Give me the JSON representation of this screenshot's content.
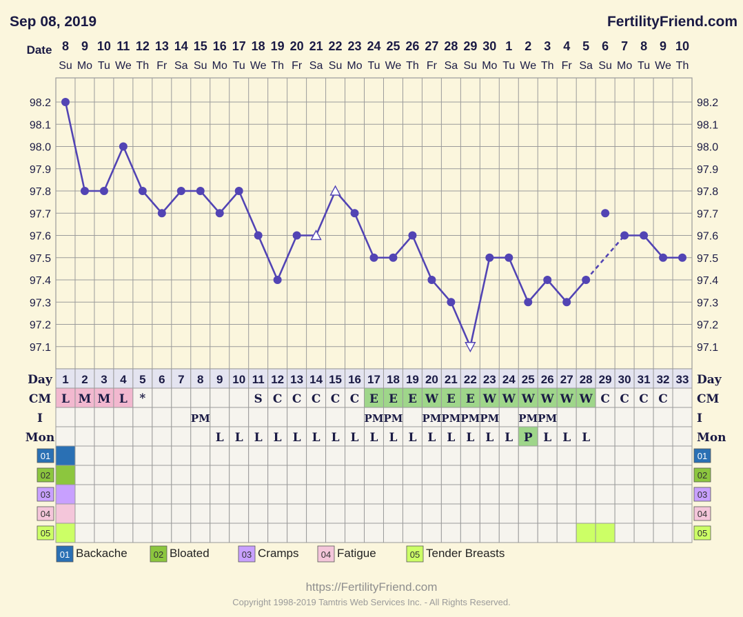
{
  "header": {
    "date": "Sep 08, 2019",
    "site": "FertilityFriend.com"
  },
  "row_labels": {
    "date": "Date",
    "day": "Day",
    "cm": "CM",
    "intercourse": "I",
    "mon": "Mon"
  },
  "footer": {
    "url": "https://FertilityFriend.com",
    "copyright": "Copyright 1998-2019 Tamtris Web Services Inc. - All Rights Reserved."
  },
  "colors": {
    "background": "#fbf6dd",
    "grid": "#9a9a9a",
    "line": "#5244b4",
    "cm_fertile": "#9fd68a",
    "cm_period": "#f2b8cf",
    "mon_peak": "#9fd68a",
    "day_row": "#e4e4f0",
    "legend_01": "#2a70b4",
    "legend_02": "#8cc63e",
    "legend_03": "#c8a0ff",
    "legend_04": "#f4c6da",
    "legend_05": "#ccff66"
  },
  "chart_data": {
    "type": "line",
    "title": "",
    "xlabel": "Date",
    "ylabel": "",
    "ylim": [
      97.0,
      98.25
    ],
    "y_ticks": [
      "98.2",
      "98.1",
      "98.0",
      "97.9",
      "97.8",
      "97.7",
      "97.6",
      "97.5",
      "97.4",
      "97.3",
      "97.2",
      "97.1"
    ],
    "grid": true,
    "dates": [
      "8",
      "9",
      "10",
      "11",
      "12",
      "13",
      "14",
      "15",
      "16",
      "17",
      "18",
      "19",
      "20",
      "21",
      "22",
      "23",
      "24",
      "25",
      "26",
      "27",
      "28",
      "29",
      "30",
      "1",
      "2",
      "3",
      "4",
      "5",
      "6",
      "7",
      "8",
      "9",
      "10"
    ],
    "weekdays": [
      "Su",
      "Mo",
      "Tu",
      "We",
      "Th",
      "Fr",
      "Sa",
      "Su",
      "Mo",
      "Tu",
      "We",
      "Th",
      "Fr",
      "Sa",
      "Su",
      "Mo",
      "Tu",
      "We",
      "Th",
      "Fr",
      "Sa",
      "Su",
      "Mo",
      "Tu",
      "We",
      "Th",
      "Fr",
      "Sa",
      "Su",
      "Mo",
      "Tu",
      "We",
      "Th"
    ],
    "cycle_days": [
      "1",
      "2",
      "3",
      "4",
      "5",
      "6",
      "7",
      "8",
      "9",
      "10",
      "11",
      "12",
      "13",
      "14",
      "15",
      "16",
      "17",
      "18",
      "19",
      "20",
      "21",
      "22",
      "23",
      "24",
      "25",
      "26",
      "27",
      "28",
      "29",
      "30",
      "31",
      "32",
      "33"
    ],
    "temperatures": [
      98.2,
      97.8,
      97.8,
      98.0,
      97.8,
      97.7,
      97.8,
      97.8,
      97.7,
      97.8,
      97.6,
      97.4,
      97.6,
      97.6,
      97.8,
      97.7,
      97.5,
      97.5,
      97.6,
      97.4,
      97.3,
      97.1,
      97.5,
      97.5,
      97.3,
      97.4,
      97.3,
      97.4,
      97.7,
      97.6,
      97.6,
      97.5,
      97.5
    ],
    "marker_types": [
      "dot",
      "dot",
      "dot",
      "dot",
      "dot",
      "dot",
      "dot",
      "dot",
      "dot",
      "dot",
      "dot",
      "dot",
      "dot",
      "open-triangle",
      "open-triangle",
      "dot",
      "dot",
      "dot",
      "dot",
      "dot",
      "dot",
      "open-triangle-down",
      "dot",
      "dot",
      "dot",
      "dot",
      "dot",
      "dot",
      "dot",
      "dot",
      "dot",
      "dot",
      "dot"
    ],
    "discarded_days": [
      29
    ],
    "dashed_segment": [
      28,
      30
    ],
    "cm": [
      "L",
      "M",
      "M",
      "L",
      "*",
      "",
      "",
      "",
      "",
      "",
      "S",
      "C",
      "C",
      "C",
      "C",
      "C",
      "E",
      "E",
      "E",
      "W",
      "E",
      "E",
      "W",
      "W",
      "W",
      "W",
      "W",
      "W",
      "C",
      "C",
      "C",
      "C",
      ""
    ],
    "cm_highlight": [
      "period",
      "period",
      "period",
      "period",
      "",
      "",
      "",
      "",
      "",
      "",
      "",
      "",
      "",
      "",
      "",
      "",
      "fertile",
      "fertile",
      "fertile",
      "fertile",
      "fertile",
      "fertile",
      "fertile",
      "fertile",
      "fertile",
      "fertile",
      "fertile",
      "fertile",
      "",
      "",
      "",
      "",
      ""
    ],
    "intercourse": [
      "",
      "",
      "",
      "",
      "",
      "",
      "",
      "PM",
      "",
      "",
      "",
      "",
      "",
      "",
      "",
      "",
      "PM",
      "PM",
      "",
      "PM",
      "PM",
      "PM",
      "PM",
      "",
      "PM",
      "PM",
      "",
      "",
      "",
      "",
      "",
      "",
      ""
    ],
    "mon": [
      "",
      "",
      "",
      "",
      "",
      "",
      "",
      "",
      "L",
      "L",
      "L",
      "L",
      "L",
      "L",
      "L",
      "L",
      "L",
      "L",
      "L",
      "L",
      "L",
      "L",
      "L",
      "L",
      "P",
      "L",
      "L",
      "L",
      "",
      "",
      "",
      "",
      ""
    ],
    "mon_highlight_day": 25,
    "symptoms": [
      {
        "code": "01",
        "name": "Backache",
        "color": "#2a70b4",
        "days": [
          1
        ]
      },
      {
        "code": "02",
        "name": "Bloated",
        "color": "#8cc63e",
        "days": [
          1
        ]
      },
      {
        "code": "03",
        "name": "Cramps",
        "color": "#c8a0ff",
        "days": [
          1
        ]
      },
      {
        "code": "04",
        "name": "Fatigue",
        "color": "#f4c6da",
        "days": [
          1
        ]
      },
      {
        "code": "05",
        "name": "Tender Breasts",
        "color": "#ccff66",
        "days": [
          1,
          28,
          29
        ]
      }
    ]
  }
}
